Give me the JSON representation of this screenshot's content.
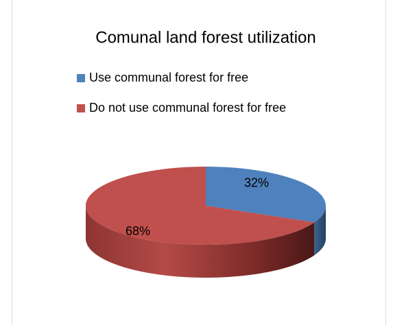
{
  "chart_data": {
    "type": "pie",
    "title": "Comunal land forest utilization",
    "categories": [
      "Use communal forest for free",
      "Do not use communal forest for free"
    ],
    "values": [
      32,
      68
    ],
    "value_labels": [
      "32%",
      "68%"
    ],
    "colors": [
      "#4f81bd",
      "#c0504d"
    ],
    "legend": "top"
  }
}
